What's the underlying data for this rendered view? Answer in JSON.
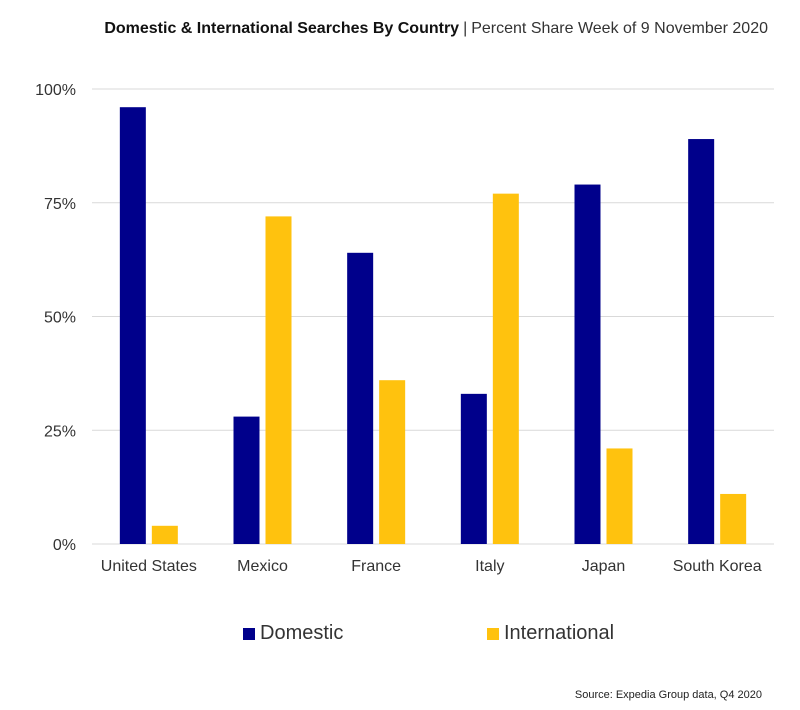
{
  "header": {
    "title": "Domestic & International Searches By Country",
    "separator": "|",
    "subtitle": "Percent Share Week of 9 November 2020"
  },
  "source": "Source: Expedia Group data, Q4 2020",
  "colors": {
    "domestic": "#00008B",
    "international": "#FFC20E",
    "grid": "#d9d9d9"
  },
  "chart_data": {
    "type": "bar",
    "title": "Domestic & International Searches By Country",
    "subtitle": "Percent Share Week of 9 November 2020",
    "categories": [
      "United States",
      "Mexico",
      "France",
      "Italy",
      "Japan",
      "South Korea"
    ],
    "series": [
      {
        "name": "Domestic",
        "values": [
          96,
          28,
          64,
          33,
          79,
          89
        ]
      },
      {
        "name": "International",
        "values": [
          4,
          72,
          36,
          77,
          21,
          11
        ]
      }
    ],
    "y_ticks": [
      "0%",
      "25%",
      "50%",
      "75%",
      "100%"
    ],
    "ylim": [
      0,
      100
    ],
    "grid": true,
    "legend_position": "bottom"
  }
}
